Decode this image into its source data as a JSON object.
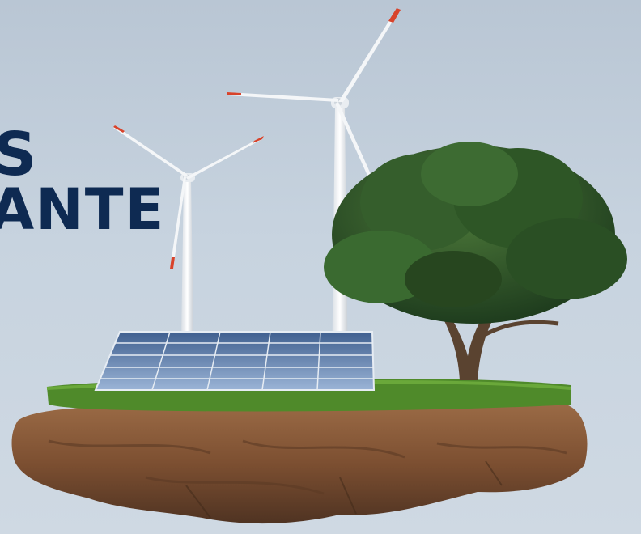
{
  "headline": {
    "line1": "S",
    "line2": "ANTE",
    "color": "#0e2a52"
  },
  "scene": {
    "background_color": "#c2cfdc",
    "elements": [
      "wind-turbine-small",
      "wind-turbine-tall",
      "solar-panel-array",
      "tree",
      "floating-rock-island"
    ],
    "blade_tip_color": "#d8432b",
    "grass_color": "#4f8a2a",
    "rock_color": "#8a5a3a"
  }
}
